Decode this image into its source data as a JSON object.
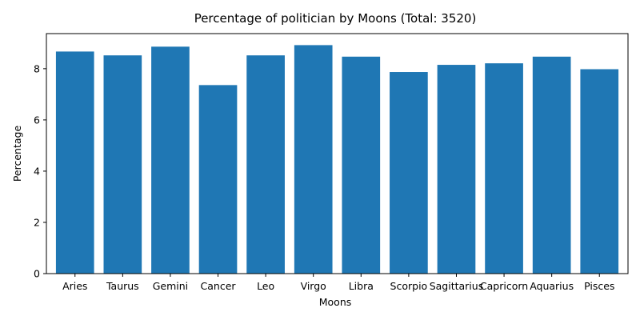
{
  "chart_data": {
    "type": "bar",
    "title": "Percentage of politician by Moons (Total: 3520)",
    "xlabel": "Moons",
    "ylabel": "Percentage",
    "categories": [
      "Aries",
      "Taurus",
      "Gemini",
      "Cancer",
      "Leo",
      "Virgo",
      "Libra",
      "Scorpio",
      "Sagittarius",
      "Capricorn",
      "Aquarius",
      "Pisces"
    ],
    "values": [
      8.67,
      8.52,
      8.86,
      7.36,
      8.52,
      8.92,
      8.47,
      7.87,
      8.15,
      8.21,
      8.47,
      7.98
    ],
    "ylim": [
      0,
      9.37
    ],
    "yticks": [
      0,
      2,
      4,
      6,
      8
    ],
    "grid": false,
    "legend": "none",
    "bar_color": "#1f77b4"
  }
}
